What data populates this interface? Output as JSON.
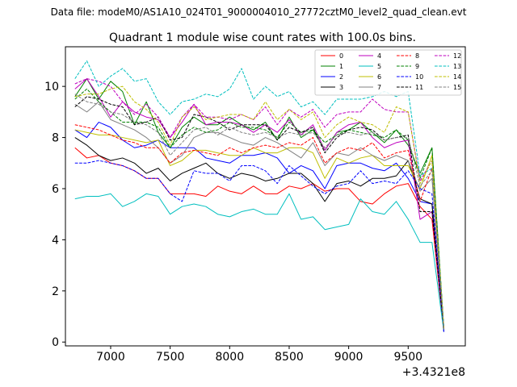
{
  "figure": {
    "suptitle": "Data file: modeM0/AS1A10_024T01_9000004010_27772cztM0_level2_quad_clean.evt",
    "offset_label": "+3.4321e8"
  },
  "chart_data": {
    "type": "line",
    "title": "Quadrant 1 module wise count rates with 100.0s bins.",
    "xlabel": "",
    "ylabel": "",
    "xlim": [
      6620,
      9980
    ],
    "ylim": [
      -0.15,
      11.55
    ],
    "xticks": [
      7000,
      7500,
      8000,
      8500,
      9000,
      9500
    ],
    "yticks": [
      0,
      2,
      4,
      6,
      8,
      10
    ],
    "grid": false,
    "legend_placement": "top-right",
    "x": [
      6700,
      6800,
      6900,
      7000,
      7100,
      7200,
      7300,
      7400,
      7500,
      7600,
      7700,
      7800,
      7900,
      8000,
      8100,
      8200,
      8300,
      8400,
      8500,
      8600,
      8700,
      8800,
      8900,
      9000,
      9100,
      9200,
      9300,
      9400,
      9500,
      9600,
      9700,
      9800
    ],
    "series": [
      {
        "name": "0",
        "color": "#ff0000",
        "dashed": false,
        "values": [
          7.6,
          7.2,
          7.3,
          7.0,
          6.9,
          6.7,
          6.4,
          6.4,
          5.8,
          5.8,
          5.8,
          5.7,
          6.1,
          5.9,
          5.8,
          6.1,
          5.8,
          5.8,
          6.1,
          6.0,
          6.2,
          5.9,
          6.0,
          6.0,
          5.5,
          5.4,
          5.8,
          6.1,
          6.2,
          5.3,
          4.8,
          0.4
        ]
      },
      {
        "name": "1",
        "color": "#008000",
        "dashed": false,
        "values": [
          9.6,
          10.3,
          9.5,
          10.2,
          9.8,
          8.5,
          9.4,
          8.2,
          7.6,
          8.4,
          8.8,
          8.5,
          8.5,
          8.8,
          8.5,
          8.3,
          8.6,
          7.9,
          8.8,
          8.0,
          8.3,
          7.5,
          8.2,
          8.3,
          8.6,
          8.2,
          7.8,
          8.3,
          7.7,
          6.6,
          7.6,
          0.5
        ]
      },
      {
        "name": "2",
        "color": "#0000ff",
        "dashed": false,
        "values": [
          8.3,
          8.0,
          8.6,
          8.4,
          7.9,
          7.6,
          7.7,
          7.9,
          7.6,
          7.6,
          7.6,
          7.2,
          7.1,
          7.0,
          7.3,
          7.3,
          7.4,
          7.2,
          6.6,
          6.9,
          6.7,
          6.0,
          6.9,
          7.0,
          7.0,
          6.8,
          6.7,
          7.0,
          6.4,
          5.5,
          5.4,
          0.4
        ]
      },
      {
        "name": "3",
        "color": "#000000",
        "dashed": false,
        "values": [
          8.0,
          7.7,
          7.3,
          7.1,
          7.2,
          7.0,
          6.6,
          6.8,
          6.3,
          6.6,
          6.8,
          7.0,
          6.6,
          6.4,
          6.6,
          6.5,
          6.3,
          6.4,
          6.6,
          6.6,
          6.2,
          5.5,
          6.2,
          6.3,
          6.1,
          6.4,
          6.4,
          6.5,
          7.1,
          5.6,
          5.4,
          0.5
        ]
      },
      {
        "name": "4",
        "color": "#bf00bf",
        "dashed": false,
        "values": [
          9.9,
          10.3,
          9.6,
          8.8,
          9.4,
          9.0,
          8.8,
          8.7,
          8.0,
          8.6,
          9.3,
          8.5,
          8.6,
          8.6,
          8.5,
          8.2,
          8.5,
          8.2,
          8.7,
          8.1,
          8.5,
          7.5,
          8.2,
          8.5,
          8.6,
          8.0,
          7.6,
          7.8,
          7.9,
          4.8,
          5.1,
          0.4
        ]
      },
      {
        "name": "5",
        "color": "#00bfbf",
        "dashed": false,
        "values": [
          5.6,
          5.7,
          5.7,
          5.8,
          5.3,
          5.5,
          5.8,
          5.7,
          5.0,
          5.3,
          5.4,
          5.3,
          5.0,
          4.9,
          5.1,
          5.2,
          5.0,
          5.0,
          5.8,
          4.8,
          4.9,
          4.4,
          4.5,
          4.6,
          5.6,
          5.1,
          5.0,
          5.5,
          4.8,
          3.9,
          3.9,
          0.4
        ]
      },
      {
        "name": "6",
        "color": "#bfbf00",
        "dashed": false,
        "values": [
          8.3,
          8.2,
          8.1,
          8.1,
          8.0,
          7.9,
          7.8,
          7.9,
          6.9,
          7.1,
          7.5,
          7.5,
          7.4,
          7.3,
          7.3,
          7.6,
          7.4,
          7.4,
          7.6,
          7.6,
          7.4,
          6.4,
          7.2,
          7.0,
          7.2,
          7.3,
          6.9,
          6.9,
          6.9,
          6.0,
          7.3,
          0.5
        ]
      },
      {
        "name": "7",
        "color": "#808080",
        "dashed": false,
        "values": [
          9.3,
          9.0,
          9.4,
          8.7,
          8.5,
          8.3,
          8.0,
          7.6,
          7.0,
          7.3,
          8.0,
          8.2,
          8.2,
          8.0,
          7.8,
          7.7,
          8.0,
          7.8,
          7.5,
          7.2,
          7.8,
          6.9,
          7.4,
          7.3,
          7.6,
          7.3,
          7.1,
          7.3,
          7.1,
          5.9,
          6.4,
          0.5
        ]
      },
      {
        "name": "8",
        "color": "#ff0000",
        "dashed": true,
        "values": [
          8.5,
          8.4,
          8.3,
          8.1,
          7.9,
          7.8,
          7.6,
          7.6,
          7.0,
          7.4,
          7.5,
          7.4,
          7.3,
          7.6,
          7.4,
          7.6,
          7.7,
          7.6,
          7.8,
          7.7,
          8.0,
          7.0,
          7.4,
          7.6,
          7.5,
          7.8,
          7.2,
          7.4,
          7.5,
          5.5,
          6.8,
          0.5
        ]
      },
      {
        "name": "9",
        "color": "#008000",
        "dashed": true,
        "values": [
          9.5,
          9.9,
          9.4,
          9.0,
          8.6,
          8.6,
          8.6,
          8.4,
          7.6,
          8.1,
          8.4,
          8.2,
          8.3,
          8.6,
          8.4,
          8.4,
          8.3,
          8.0,
          8.6,
          8.2,
          8.3,
          7.8,
          8.1,
          8.3,
          8.2,
          8.1,
          8.0,
          8.3,
          7.9,
          6.4,
          7.6,
          0.5
        ]
      },
      {
        "name": "10",
        "color": "#0000ff",
        "dashed": true,
        "values": [
          7.0,
          7.0,
          7.1,
          7.0,
          6.9,
          6.7,
          6.4,
          6.4,
          5.8,
          5.5,
          6.7,
          6.6,
          6.6,
          6.3,
          6.9,
          6.9,
          6.7,
          6.2,
          6.9,
          6.5,
          6.1,
          5.8,
          6.1,
          6.2,
          6.7,
          6.2,
          6.3,
          6.2,
          6.7,
          6.0,
          5.8,
          0.4
        ]
      },
      {
        "name": "11",
        "color": "#000000",
        "dashed": true,
        "values": [
          9.2,
          9.6,
          9.5,
          9.3,
          9.2,
          8.5,
          8.6,
          8.8,
          7.9,
          8.0,
          8.9,
          8.8,
          8.6,
          8.3,
          8.5,
          8.5,
          8.5,
          7.9,
          8.4,
          8.2,
          8.4,
          7.4,
          8.0,
          8.3,
          8.4,
          8.3,
          7.9,
          8.0,
          8.1,
          5.1,
          5.1,
          0.5
        ]
      },
      {
        "name": "12",
        "color": "#bf00bf",
        "dashed": true,
        "values": [
          10.1,
          10.3,
          10.2,
          10.0,
          9.4,
          8.9,
          9.3,
          8.8,
          8.0,
          8.8,
          9.3,
          8.8,
          8.8,
          8.7,
          8.9,
          8.7,
          9.2,
          8.5,
          9.1,
          8.8,
          9.1,
          8.4,
          8.9,
          9.0,
          9.0,
          9.5,
          9.1,
          9.0,
          9.0,
          6.3,
          7.1,
          0.5
        ]
      },
      {
        "name": "13",
        "color": "#00bfbf",
        "dashed": true,
        "values": [
          10.3,
          11.0,
          10.0,
          10.4,
          10.7,
          10.2,
          10.3,
          9.4,
          8.9,
          9.4,
          9.5,
          9.7,
          9.6,
          9.9,
          10.7,
          9.5,
          10.0,
          9.6,
          9.8,
          9.2,
          9.4,
          8.9,
          9.5,
          9.5,
          9.5,
          9.6,
          9.8,
          9.6,
          9.8,
          6.5,
          6.8,
          0.6
        ]
      },
      {
        "name": "14",
        "color": "#bfbf00",
        "dashed": true,
        "values": [
          9.6,
          9.7,
          9.7,
          9.9,
          10.0,
          9.4,
          9.1,
          8.6,
          7.7,
          8.8,
          9.2,
          8.7,
          8.8,
          8.9,
          8.9,
          8.7,
          9.4,
          8.7,
          9.1,
          8.7,
          9.0,
          8.0,
          8.5,
          8.8,
          8.6,
          8.5,
          8.2,
          9.2,
          9.0,
          6.2,
          7.1,
          0.5
        ]
      },
      {
        "name": "15",
        "color": "#808080",
        "dashed": true,
        "values": [
          9.7,
          9.4,
          9.3,
          9.0,
          8.9,
          8.6,
          8.5,
          8.2,
          7.3,
          7.8,
          8.3,
          8.4,
          8.1,
          8.4,
          8.2,
          8.1,
          8.2,
          8.0,
          8.2,
          8.1,
          8.2,
          7.6,
          8.1,
          8.2,
          8.1,
          8.2,
          7.9,
          8.0,
          8.0,
          6.1,
          6.7,
          0.5
        ]
      }
    ]
  }
}
